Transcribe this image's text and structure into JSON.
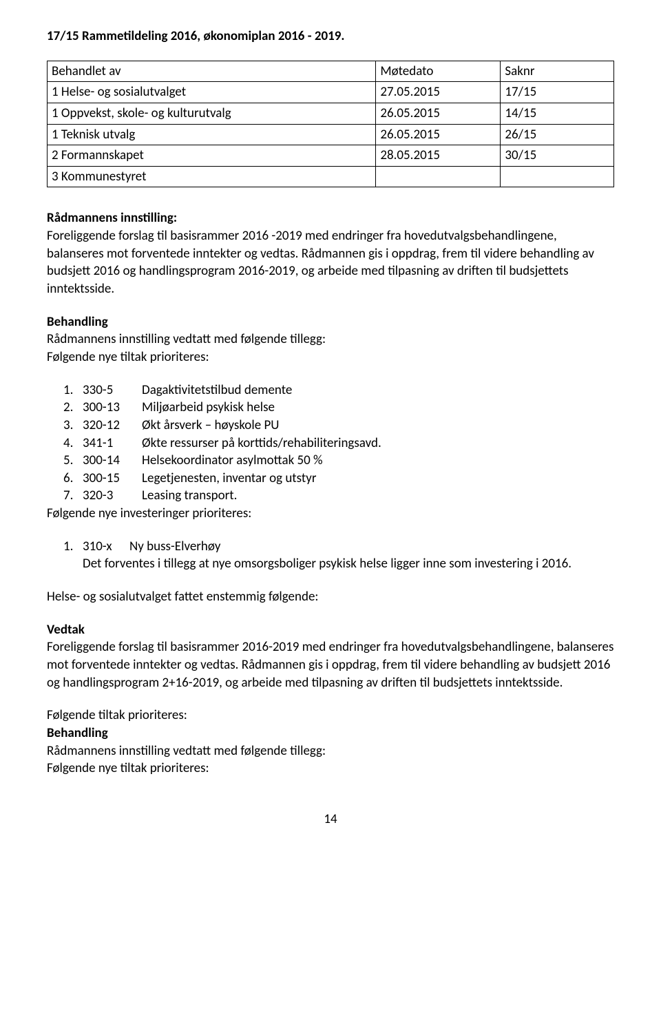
{
  "title": "17/15 Rammetildeling 2016, økonomiplan 2016 - 2019.",
  "meetingTable": {
    "headers": {
      "behandlet": "Behandlet av",
      "motedato": "Møtedato",
      "saknr": "Saknr"
    },
    "rows": [
      {
        "behandlet": "1 Helse- og sosialutvalget",
        "motedato": "27.05.2015",
        "saknr": "17/15"
      },
      {
        "behandlet": "1 Oppvekst, skole- og kulturutvalg",
        "motedato": "26.05.2015",
        "saknr": "14/15"
      },
      {
        "behandlet": "1 Teknisk utvalg",
        "motedato": "26.05.2015",
        "saknr": "26/15"
      },
      {
        "behandlet": "2 Formannskapet",
        "motedato": "28.05.2015",
        "saknr": "30/15"
      },
      {
        "behandlet": "3 Kommunestyret",
        "motedato": "",
        "saknr": ""
      }
    ]
  },
  "radmannens": {
    "heading": "Rådmannens innstilling:",
    "body": "Foreliggende forslag til basisrammer 2016 -2019 med endringer fra hovedutvalgsbehandlingene, balanseres mot forventede inntekter og vedtas. Rådmannen gis i oppdrag, frem til videre behandling av budsjett 2016 og handlingsprogram 2016-2019, og arbeide med tilpasning av driften til budsjettets inntektsside."
  },
  "behandling1": {
    "heading": "Behandling",
    "line1": "Rådmannens innstilling vedtatt med følgende tillegg:",
    "line2": "Følgende nye tiltak prioriteres:"
  },
  "tiltak": [
    {
      "num": "1.",
      "code": "330-5",
      "desc": "Dagaktivitetstilbud demente"
    },
    {
      "num": "2.",
      "code": "300-13",
      "desc": "Miljøarbeid psykisk helse"
    },
    {
      "num": "3.",
      "code": "320-12",
      "desc": "Økt årsverk – høyskole PU"
    },
    {
      "num": "4.",
      "code": "341-1",
      "desc": "Økte ressurser på korttids/rehabiliteringsavd."
    },
    {
      "num": "5.",
      "code": "300-14",
      "desc": "Helsekoordinator asylmottak 50 %"
    },
    {
      "num": "6.",
      "code": "300-15",
      "desc": "Legetjenesten, inventar og utstyr"
    },
    {
      "num": "7.",
      "code": "320-3",
      "desc": "Leasing transport."
    }
  ],
  "investHeading": "Følgende nye investeringer prioriteres:",
  "invest": {
    "num": "1.",
    "code": "310-x",
    "title": "Ny buss-Elverhøy",
    "body": "Det forventes i tillegg at nye omsorgsboliger psykisk helse ligger inne som investering i 2016."
  },
  "helseLine": "Helse- og sosialutvalget fattet enstemmig følgende:",
  "vedtak": {
    "heading": "Vedtak",
    "body": "Foreliggende forslag til basisrammer 2016-2019 med endringer fra hovedutvalgsbehandlingene, balanseres mot forventede inntekter og vedtas. Rådmannen gis i oppdrag, frem til videre behandling av budsjett 2016 og handlingsprogram 2+16-2019, og arbeide med tilpasning av driften til budsjettets inntektsside."
  },
  "trailing": {
    "line1": "Følgende tiltak prioriteres:",
    "heading": "Behandling",
    "line2": "Rådmannens innstilling vedtatt med følgende tillegg:",
    "line3": "Følgende nye tiltak prioriteres:"
  },
  "pageNumber": "14"
}
